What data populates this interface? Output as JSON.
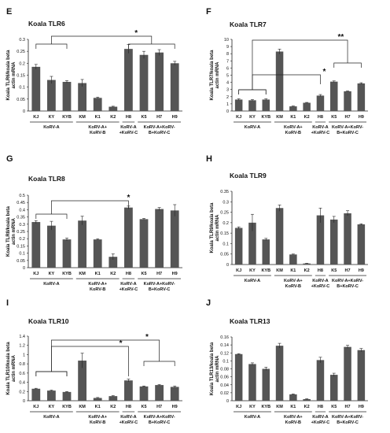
{
  "chart_data": [
    {
      "type": "bar",
      "panel": "E",
      "title": "Koala TLR6",
      "ylabel": [
        "Koala TLR6/koala beta",
        "actin mRNA"
      ],
      "ylim": [
        0,
        0.3
      ],
      "yticks": [
        "0",
        "0.05",
        "0.1",
        "0.15",
        "0.2",
        "0.25",
        "0.3"
      ],
      "categories": [
        "KJ",
        "KY",
        "KYB",
        "KM",
        "K1",
        "K2",
        "H8",
        "K5",
        "H7",
        "H9"
      ],
      "values": [
        0.185,
        0.13,
        0.122,
        0.117,
        0.055,
        0.018,
        0.26,
        0.235,
        0.245,
        0.2
      ],
      "errors": [
        0.01,
        0.015,
        0.005,
        0.015,
        0.003,
        0.002,
        0.018,
        0.015,
        0.012,
        0.008
      ],
      "groups": [
        {
          "label": [
            "KoRV-A"
          ],
          "from": 0,
          "to": 2
        },
        {
          "label": [
            "KoRV-A+",
            "KoRV-B"
          ],
          "from": 3,
          "to": 5
        },
        {
          "label": [
            "KoRV-A",
            "+KoRV-C"
          ],
          "from": 6,
          "to": 6
        },
        {
          "label": [
            "KoRV-A+KoRV-",
            "B+KoRV-C"
          ],
          "from": 7,
          "to": 9
        }
      ],
      "significance": [
        "*"
      ]
    },
    {
      "type": "bar",
      "panel": "F",
      "title": "Koala TLR7",
      "ylabel": [
        "Koala TLR7/koala beta",
        "actin mRNA"
      ],
      "ylim": [
        0,
        10
      ],
      "yticks": [
        "0",
        "1",
        "2",
        "3",
        "4",
        "5",
        "6",
        "7",
        "8",
        "9",
        "10"
      ],
      "categories": [
        "KJ",
        "KY",
        "KYB",
        "KM",
        "K1",
        "K2",
        "H8",
        "K5",
        "H7",
        "H9"
      ],
      "values": [
        1.6,
        1.5,
        1.6,
        8.3,
        0.65,
        1.15,
        2.15,
        4.1,
        2.75,
        3.85
      ],
      "errors": [
        0.1,
        0.1,
        0.1,
        0.35,
        0.05,
        0.05,
        0.15,
        0.1,
        0.05,
        0.1
      ],
      "groups": [
        {
          "label": [
            "KoRV-A"
          ],
          "from": 0,
          "to": 2
        },
        {
          "label": [
            "KoRV-A+",
            "KoRV-B"
          ],
          "from": 3,
          "to": 5
        },
        {
          "label": [
            "KoRV-A",
            "+KoRV-C"
          ],
          "from": 6,
          "to": 6
        },
        {
          "label": [
            "KoRV-A+KoRV-",
            "B+KoRV-C"
          ],
          "from": 7,
          "to": 9
        }
      ],
      "significance": [
        "*",
        "**"
      ]
    },
    {
      "type": "bar",
      "panel": "G",
      "title": "Koala TLR8",
      "ylabel": [
        "Koala TLR8/koala beta",
        "actin mRNA"
      ],
      "ylim": [
        0,
        0.5
      ],
      "yticks": [
        "0",
        "0.05",
        "0.1",
        "0.15",
        "0.2",
        "0.25",
        "0.3",
        "0.35",
        "0.4",
        "0.45",
        "0.5"
      ],
      "categories": [
        "KJ",
        "KY",
        "KYB",
        "KM",
        "K1",
        "K2",
        "H8",
        "K5",
        "H7",
        "H9"
      ],
      "values": [
        0.315,
        0.29,
        0.195,
        0.325,
        0.195,
        0.075,
        0.415,
        0.335,
        0.405,
        0.395
      ],
      "errors": [
        0.01,
        0.03,
        0.01,
        0.03,
        0.005,
        0.02,
        0.01,
        0.005,
        0.01,
        0.04
      ],
      "groups": [
        {
          "label": [
            "KoRV-A"
          ],
          "from": 0,
          "to": 2
        },
        {
          "label": [
            "KoRV-A+",
            "KoRV-B"
          ],
          "from": 3,
          "to": 5
        },
        {
          "label": [
            "KoRV-A",
            "+KoRV-C"
          ],
          "from": 6,
          "to": 6
        },
        {
          "label": [
            "KoRV-A+KoRV-",
            "B+KoRV-C"
          ],
          "from": 7,
          "to": 9
        }
      ],
      "significance": [
        "*"
      ]
    },
    {
      "type": "bar",
      "panel": "H",
      "title": "Koala TLR9",
      "ylabel": [
        "Koala TLR9/koala beta",
        "actin mRNA"
      ],
      "ylim": [
        0,
        0.35
      ],
      "yticks": [
        "0",
        "0.05",
        "0.1",
        "0.15",
        "0.2",
        "0.25",
        "0.3",
        "0.35"
      ],
      "categories": [
        "KJ",
        "KY",
        "KYB",
        "KM",
        "K1",
        "K2",
        "H8",
        "K5",
        "H7",
        "H9"
      ],
      "values": [
        0.175,
        0.2,
        0.12,
        0.27,
        0.048,
        0.005,
        0.235,
        0.215,
        0.245,
        0.192
      ],
      "errors": [
        0.005,
        0.04,
        0.005,
        0.015,
        0.002,
        0.001,
        0.035,
        0.015,
        0.012,
        0.003
      ],
      "groups": [
        {
          "label": [
            "KoRV-A"
          ],
          "from": 0,
          "to": 2
        },
        {
          "label": [
            "KoRV-A+",
            "KoRV-B"
          ],
          "from": 3,
          "to": 5
        },
        {
          "label": [
            "KoRV-A",
            "+KoRV-C"
          ],
          "from": 6,
          "to": 6
        },
        {
          "label": [
            "KoRV-A+KoRV-",
            "B+KoRV-C"
          ],
          "from": 7,
          "to": 9
        }
      ],
      "significance": []
    },
    {
      "type": "bar",
      "panel": "I",
      "title": "Koala TLR10",
      "ylabel": [
        "Koala TLR10/koala beta",
        "actin mRNA"
      ],
      "ylim": [
        0,
        1.4
      ],
      "yticks": [
        "0",
        "0.2",
        "0.4",
        "0.6",
        "0.8",
        "1",
        "1.2",
        "1.4"
      ],
      "categories": [
        "KJ",
        "KY",
        "KYB",
        "KM",
        "K1",
        "K2",
        "H8",
        "K5",
        "H7",
        "H9"
      ],
      "values": [
        0.26,
        0.22,
        0.19,
        0.87,
        0.06,
        0.1,
        0.44,
        0.31,
        0.34,
        0.3
      ],
      "errors": [
        0.01,
        0.01,
        0.01,
        0.16,
        0.01,
        0.01,
        0.03,
        0.01,
        0.01,
        0.02
      ],
      "groups": [
        {
          "label": [
            "KoRV-A"
          ],
          "from": 0,
          "to": 2
        },
        {
          "label": [
            "KoRV-A+",
            "KoRV-B"
          ],
          "from": 3,
          "to": 5
        },
        {
          "label": [
            "KoRV-A",
            "+KoRV-C"
          ],
          "from": 6,
          "to": 6
        },
        {
          "label": [
            "KoRV-A+KoRV-",
            "B+KoRV-C"
          ],
          "from": 7,
          "to": 9
        }
      ],
      "significance": [
        "*",
        "*"
      ]
    },
    {
      "type": "bar",
      "panel": "J",
      "title": "Koala TLR13",
      "ylabel": [
        "Koala TLR13/koala beta",
        "actin mRNA"
      ],
      "ylim": [
        0,
        0.16
      ],
      "yticks": [
        "0",
        "0.02",
        "0.04",
        "0.06",
        "0.08",
        "0.1",
        "0.12",
        "0.14",
        "0.16"
      ],
      "categories": [
        "KJ",
        "KY",
        "KYB",
        "KM",
        "K1",
        "K2",
        "H8",
        "K5",
        "H7",
        "H9"
      ],
      "values": [
        0.117,
        0.092,
        0.08,
        0.138,
        0.016,
        0.004,
        0.102,
        0.065,
        0.135,
        0.127
      ],
      "errors": [
        0.001,
        0.003,
        0.004,
        0.006,
        0.001,
        0.001,
        0.007,
        0.004,
        0.004,
        0.004
      ],
      "groups": [
        {
          "label": [
            "KoRV-A"
          ],
          "from": 0,
          "to": 2
        },
        {
          "label": [
            "KoRV-A+",
            "KoRV-B"
          ],
          "from": 3,
          "to": 5
        },
        {
          "label": [
            "KoRV-A",
            "+KoRV-C"
          ],
          "from": 6,
          "to": 6
        },
        {
          "label": [
            "KoRV-A+KoRV-",
            "B+KoRV-C"
          ],
          "from": 7,
          "to": 9
        }
      ],
      "significance": []
    }
  ]
}
